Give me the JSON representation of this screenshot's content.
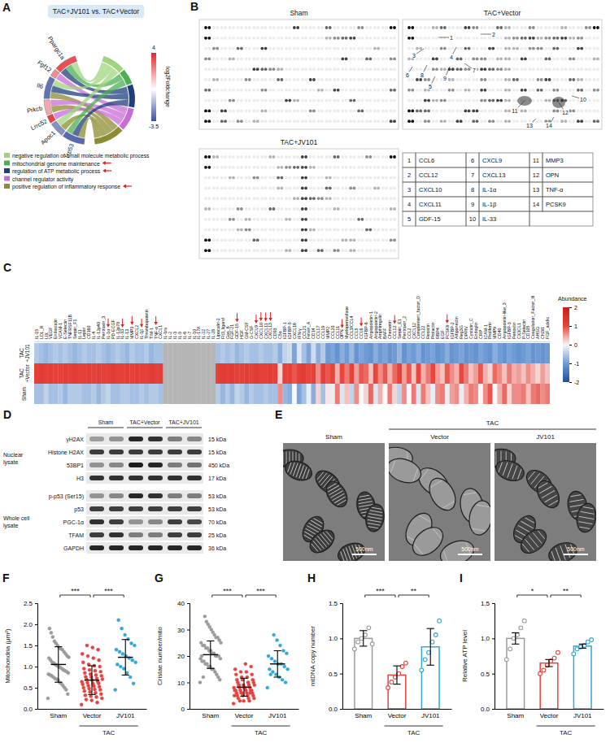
{
  "panel_A": {
    "panel_letter": "A",
    "title": "TAC+JV101 vs. TAC+Vector",
    "genes": [
      {
        "name": "Ppargc1a",
        "log2fc": 3.2,
        "terms": [
          0,
          1,
          2
        ]
      },
      {
        "name": "Fgf12",
        "log2fc": 2.1,
        "terms": [
          3
        ]
      },
      {
        "name": "Il6",
        "log2fc": -2.8,
        "terms": [
          0,
          2,
          4
        ]
      },
      {
        "name": "Prkcb",
        "log2fc": 1.6,
        "terms": [
          3,
          4
        ]
      },
      {
        "name": "Lrrc52",
        "log2fc": 3.5,
        "terms": [
          3
        ]
      },
      {
        "name": "Apoc1",
        "log2fc": -2.2,
        "terms": [
          0,
          4
        ]
      },
      {
        "name": "Trp53",
        "log2fc": -3.0,
        "terms": [
          1,
          2,
          4
        ]
      }
    ],
    "terms": [
      {
        "name": "negative regulation of small molecule metabolic process",
        "color": "#9fd47c"
      },
      {
        "name": "mitochondrial genome maintenance",
        "color": "#4caf50",
        "arrow": true
      },
      {
        "name": "regulation of ATP metabolic process",
        "color": "#1e3f7d",
        "arrow": true
      },
      {
        "name": "channel regulator activity",
        "color": "#c86dd7"
      },
      {
        "name": "positive regulation of inflammatory response",
        "color": "#8c8c32",
        "arrow": true
      }
    ],
    "colorbar": {
      "title": "log2Foldchange",
      "max": 4,
      "min": -3.5
    }
  },
  "panel_B": {
    "panel_letter": "B",
    "blots": [
      "Sham",
      "TAC+Vector",
      "TAC+JV101"
    ],
    "table": [
      {
        "number": 1,
        "name": "CCL6"
      },
      {
        "number": 2,
        "name": "CCL12"
      },
      {
        "number": 3,
        "name": "CXCL10"
      },
      {
        "number": 4,
        "name": "CXCL11"
      },
      {
        "number": 5,
        "name": "GDF-15"
      },
      {
        "number": 6,
        "name": "CXCL9"
      },
      {
        "number": 7,
        "name": "CXCL13"
      },
      {
        "number": 8,
        "name": "IL-1α"
      },
      {
        "number": 9,
        "name": "IL-1β"
      },
      {
        "number": 10,
        "name": "IL-33"
      },
      {
        "number": 11,
        "name": "MMP3"
      },
      {
        "number": 12,
        "name": "OPN"
      },
      {
        "number": 13,
        "name": "TNF-α"
      },
      {
        "number": 14,
        "name": "PCSK9"
      }
    ]
  },
  "chart_data": [
    {
      "type": "heatmap",
      "panel_letter": "C",
      "categories": [
        "IL-15",
        "LDL_R",
        "LIX",
        "VEGF",
        "Endostatin",
        "VCAM-1",
        "E-Selectin",
        "TNFRSF11B",
        "Serpin_F1",
        "IL-11",
        "Leptin",
        "CD160",
        "IL-4",
        "IL-12p40",
        "Pentraxin_3",
        "IL-1α",
        "PD-ECGF",
        "IL-12p70",
        "IL-33",
        "IL-13",
        "MMP3",
        "CXCL2",
        "IL-1β",
        "Thrombopoietin",
        "TIM-1",
        "TNF-α",
        "CXCL1",
        "IL-1ra",
        "IL-2",
        "IL-3",
        "IL-5",
        "IL-6",
        "IL-7",
        "IL-10",
        "IL-17A",
        "IL-22",
        "IL-27",
        "IL-28",
        "Lipocalin-2",
        "Flt3_ligand",
        "Gas_6",
        "FGF-21",
        "GDF-15",
        "HGF",
        "GM-CSF",
        "G-CSF",
        "CXCL9",
        "CXCL10",
        "CXCL11",
        "CXCL13",
        "CD93",
        "C5a",
        "IGFBP-1",
        "IGFBP-5",
        "CXCL16",
        "IFN-γ",
        "CCL21",
        "Fetuin_A",
        "CD14",
        "CCL17",
        "CCL19",
        "MMP2",
        "CCL20",
        "CCL11",
        "OPN",
        "Myeloperoxidase",
        "CCL3/CCL4",
        "CCL5",
        "CCL6",
        "IGFBP-6",
        "Angiopoietin-1",
        "Angiopoietin-2",
        "Amphiregulin",
        "BAFF",
        "Chemerin",
        "CCL12",
        "Serpin_E1",
        "Pentraxin_2",
        "CCL2",
        "CXCL12",
        "Complement_factor_D",
        "CCL22",
        "Resistin",
        "Prolactin",
        "RBP4",
        "EGF",
        "PCSK9",
        "IGFBP-2",
        "Adiponectin",
        "Reg3G",
        "DPPIV",
        "Cystatin_C",
        "Endoglin",
        "CRP",
        "ICAM-1",
        "Proliferin",
        "MMP9",
        "CD40",
        "Angiopoietin-like_3",
        "IGFBP-3",
        "Periostin",
        "CX3CL1",
        "P-Selectin",
        "CD105",
        "Coagulation_Factor_III",
        "AHSG",
        "Chi3l1",
        "FGF_acidic"
      ],
      "rows": [
        "TAC+JV101",
        "TAC+Vector",
        "Sham"
      ],
      "cells": [
        [
          -0.5,
          -0.6,
          -0.7,
          -0.6,
          -0.5,
          -0.6,
          -0.5,
          -0.6,
          -0.7,
          -0.6,
          -0.5,
          -0.6,
          -0.6,
          -0.5,
          -0.6,
          -0.7,
          -0.6,
          -0.5,
          -0.6,
          -0.7,
          -0.5,
          -0.6,
          -0.6,
          -0.5,
          -0.7,
          -0.6,
          -0.6,
          null,
          null,
          null,
          null,
          null,
          null,
          null,
          null,
          null,
          null,
          null,
          -0.6,
          -0.5,
          -0.6,
          -0.5,
          -0.7,
          -0.6,
          -0.5,
          -0.6,
          -0.6,
          -0.5,
          -0.6,
          -0.6,
          -0.5,
          -0.8,
          -0.4,
          -0.3,
          -0.9,
          -0.2,
          -0.6,
          -0.9,
          -0.3,
          -0.8,
          -0.5,
          -1.0,
          -0.9,
          -1.1,
          -0.8,
          -1.0,
          -0.7,
          -1.1,
          -0.9,
          -1.0,
          -1.1,
          -0.8,
          -1.0,
          -0.9,
          -1.1,
          -1.0,
          -0.7,
          -1.1,
          -0.9,
          -1.0,
          -0.8,
          -1.1,
          -1.0,
          -0.9,
          -1.1,
          -1.0,
          -0.8,
          -1.1,
          -1.0,
          -0.9,
          -1.1,
          -1.0,
          -1.1,
          -0.9,
          -1.0,
          -1.1,
          -0.8,
          -1.0,
          -1.1,
          -0.9,
          -1.0,
          -1.1,
          -1.0,
          -0.9,
          -1.1,
          -1.0,
          -1.1,
          -1.0
        ],
        [
          1.1,
          1.2,
          1.1,
          1.2,
          1.1,
          1.1,
          1.2,
          1.1,
          1.2,
          1.1,
          1.1,
          1.2,
          1.1,
          1.2,
          1.1,
          1.1,
          1.2,
          1.1,
          1.1,
          1.2,
          1.1,
          1.2,
          1.1,
          1.1,
          1.2,
          1.1,
          1.2,
          null,
          null,
          null,
          null,
          null,
          null,
          null,
          null,
          null,
          null,
          null,
          1.1,
          1.2,
          1.1,
          1.2,
          1.1,
          1.1,
          1.2,
          1.1,
          1.2,
          1.1,
          1.1,
          1.2,
          1.1,
          0.2,
          1.1,
          1.1,
          0.9,
          1.1,
          1.2,
          1.0,
          1.1,
          0.6,
          1.1,
          0.9,
          1.0,
          0.4,
          1.0,
          0.7,
          1.1,
          0.5,
          0.9,
          0.8,
          0.3,
          1.0,
          0.6,
          0.9,
          0.4,
          0.8,
          1.1,
          0.5,
          0.9,
          0.3,
          1.0,
          0.4,
          0.7,
          1.0,
          0.5,
          0.3,
          0.9,
          0.6,
          0.4,
          1.0,
          0.7,
          0.3,
          0.5,
          0.9,
          0.4,
          0.2,
          0.8,
          0.6,
          0.3,
          0.7,
          0.4,
          0.5,
          0.3,
          0.6,
          0.4,
          0.2,
          0.5,
          0.3
        ],
        [
          -0.6,
          -0.6,
          -0.4,
          -0.6,
          -0.6,
          -0.5,
          -0.7,
          -0.5,
          -0.5,
          -0.5,
          -0.6,
          -0.6,
          -0.5,
          -0.7,
          -0.5,
          -0.4,
          -0.6,
          -0.6,
          -0.5,
          -0.5,
          -0.6,
          -0.6,
          -0.5,
          -0.6,
          -0.5,
          -0.5,
          -0.6,
          null,
          null,
          null,
          null,
          null,
          null,
          null,
          null,
          null,
          null,
          null,
          -0.5,
          -0.7,
          -0.5,
          -0.7,
          -0.4,
          -0.5,
          -0.7,
          -0.5,
          -0.6,
          -0.6,
          -0.5,
          -0.6,
          -0.6,
          0.6,
          -0.7,
          -0.8,
          0.0,
          -0.9,
          -0.6,
          -0.1,
          -0.8,
          0.2,
          -0.6,
          0.1,
          -0.1,
          0.7,
          -0.2,
          0.3,
          -0.4,
          0.6,
          0.0,
          0.2,
          0.8,
          -0.2,
          0.4,
          0.0,
          0.7,
          0.2,
          -0.4,
          0.6,
          0.0,
          0.7,
          -0.2,
          0.7,
          0.3,
          -0.1,
          0.6,
          0.7,
          -0.1,
          0.5,
          0.6,
          -0.1,
          0.4,
          0.7,
          0.6,
          0.0,
          0.6,
          0.9,
          0.0,
          0.4,
          0.8,
          0.2,
          0.6,
          0.6,
          0.7,
          0.3,
          0.7,
          0.8,
          0.6,
          0.7
        ]
      ],
      "colorbar": {
        "title": "Abundance",
        "range": [
          -2,
          2
        ],
        "ticks": [
          2,
          1,
          0,
          -1,
          -2
        ]
      }
    },
    {
      "type": "scatter",
      "panel_letter": "F",
      "y_label": "Mitochondria (μm²)",
      "categories": [
        "Sham",
        "Vector",
        "JV101"
      ],
      "group": {
        "label": "TAC",
        "members": [
          "Vector",
          "JV101"
        ]
      },
      "colors": [
        "#9b9b9b",
        "#e8423f",
        "#33a7d8"
      ],
      "marker": "circle",
      "points": [
        [
          0.25,
          0.35,
          0.45,
          0.5,
          0.55,
          0.6,
          0.62,
          0.68,
          0.7,
          0.72,
          0.75,
          0.78,
          0.8,
          0.82,
          0.85,
          0.88,
          0.9,
          0.92,
          0.95,
          0.98,
          1.0,
          1.02,
          1.05,
          1.08,
          1.1,
          1.15,
          1.2,
          1.22,
          1.25,
          1.3,
          1.35,
          1.4,
          1.42,
          1.45,
          1.5,
          1.55,
          1.6,
          1.7,
          1.8,
          1.9
        ],
        [
          0.1,
          0.15,
          0.2,
          0.22,
          0.25,
          0.28,
          0.3,
          0.32,
          0.35,
          0.38,
          0.4,
          0.42,
          0.45,
          0.46,
          0.48,
          0.5,
          0.52,
          0.54,
          0.55,
          0.58,
          0.6,
          0.6,
          0.62,
          0.64,
          0.65,
          0.68,
          0.7,
          0.7,
          0.72,
          0.75,
          0.76,
          0.78,
          0.8,
          0.82,
          0.85,
          0.88,
          0.9,
          0.92,
          0.95,
          1.0,
          1.02,
          1.05,
          1.1,
          1.15,
          1.2,
          1.25,
          1.3,
          1.4,
          1.45,
          1.5
        ],
        [
          0.45,
          0.6,
          0.75,
          0.85,
          0.95,
          1.0,
          1.05,
          1.1,
          1.15,
          1.2,
          1.25,
          1.3,
          1.35,
          1.4,
          1.5,
          1.55,
          1.65,
          1.75,
          1.9,
          2.1
        ]
      ],
      "mean": [
        1.05,
        0.68,
        1.22
      ],
      "sd": [
        0.42,
        0.34,
        0.42
      ],
      "ylim": [
        0,
        2.5
      ],
      "yticks": [
        {
          "value": 0,
          "label": "0.0"
        },
        0.5,
        {
          "value": 1,
          "label": "1.0"
        },
        1.5,
        {
          "value": 2,
          "label": "2.0"
        },
        2.5
      ],
      "significance": [
        {
          "between": [
            "Sham",
            "Vector"
          ],
          "label": "***"
        },
        {
          "between": [
            "Vector",
            "JV101"
          ],
          "label": "***"
        }
      ]
    },
    {
      "type": "scatter",
      "panel_letter": "G",
      "y_label": "Cristae number/mito",
      "categories": [
        "Sham",
        "Vector",
        "JV101"
      ],
      "group": {
        "label": "TAC",
        "members": [
          "Vector",
          "JV101"
        ]
      },
      "colors": [
        "#9b9b9b",
        "#e8423f",
        "#33a7d8"
      ],
      "marker": "circle",
      "points": [
        [
          10,
          11,
          12,
          13,
          14,
          15,
          15,
          16,
          16,
          17,
          17,
          18,
          18,
          19,
          19,
          20,
          20,
          20,
          21,
          21,
          22,
          22,
          23,
          23,
          24,
          24,
          25,
          25,
          26,
          27,
          27,
          28,
          29,
          30,
          31,
          32,
          33,
          35,
          12,
          20
        ],
        [
          2,
          3,
          3,
          4,
          4,
          4,
          5,
          5,
          5,
          5,
          6,
          6,
          6,
          6,
          6,
          7,
          7,
          7,
          7,
          7,
          7,
          8,
          8,
          8,
          8,
          8,
          9,
          9,
          9,
          9,
          10,
          10,
          10,
          11,
          11,
          11,
          12,
          12,
          13,
          13,
          14,
          14,
          15,
          16,
          17,
          3,
          5,
          6,
          8,
          9
        ],
        [
          8,
          10,
          11,
          12,
          13,
          14,
          15,
          15,
          16,
          17,
          17,
          18,
          19,
          20,
          21,
          22,
          24,
          26,
          28,
          13
        ]
      ],
      "mean": [
        20.5,
        8.2,
        17
      ],
      "sd": [
        5.2,
        3.4,
        5.0
      ],
      "ylim": [
        0,
        40
      ],
      "yticks": [
        0,
        10,
        20,
        30,
        40
      ],
      "significance": [
        {
          "between": [
            "Sham",
            "Vector"
          ],
          "label": "***"
        },
        {
          "between": [
            "Vector",
            "JV101"
          ],
          "label": "***"
        }
      ]
    },
    {
      "type": "bar",
      "panel_letter": "H",
      "y_label": "mtDNA copy number",
      "categories": [
        "Sham",
        "Vector",
        "JV101"
      ],
      "group": {
        "label": "TAC",
        "members": [
          "Vector",
          "JV101"
        ]
      },
      "colors": [
        "#9b9b9b",
        "#e8423f",
        "#33a7d8"
      ],
      "marker": "open-circle",
      "values": [
        1.0,
        0.48,
        0.88
      ],
      "errors": [
        0.11,
        0.13,
        0.26
      ],
      "points": [
        [
          0.85,
          0.95,
          1.0,
          1.05,
          1.15,
          0.92
        ],
        [
          0.3,
          0.38,
          0.45,
          0.5,
          0.6,
          0.65
        ],
        [
          0.55,
          0.7,
          0.8,
          0.95,
          1.05,
          1.25
        ]
      ],
      "ylim": [
        0,
        1.5
      ],
      "yticks": [
        {
          "value": 0,
          "label": "0.0"
        },
        0.5,
        {
          "value": 1,
          "label": "1.0"
        },
        1.5
      ],
      "significance": [
        {
          "between": [
            "Sham",
            "Vector"
          ],
          "label": "***"
        },
        {
          "between": [
            "Vector",
            "JV101"
          ],
          "label": "**"
        }
      ]
    },
    {
      "type": "bar",
      "panel_letter": "I",
      "y_label": "Relative ATP level",
      "categories": [
        "Sham",
        "Vector",
        "JV101"
      ],
      "group": {
        "label": "TAC",
        "members": [
          "Vector",
          "JV101"
        ]
      },
      "colors": [
        "#9b9b9b",
        "#e8423f",
        "#33a7d8"
      ],
      "marker": "open-circle",
      "values": [
        1.0,
        0.65,
        0.89
      ],
      "errors": [
        0.08,
        0.05,
        0.03
      ],
      "points": [
        [
          0.7,
          0.85,
          1.0,
          1.05,
          1.15,
          1.25
        ],
        [
          0.5,
          0.55,
          0.62,
          0.68,
          0.72,
          0.8
        ],
        [
          0.78,
          0.85,
          0.88,
          0.9,
          0.95,
          0.98
        ]
      ],
      "ylim": [
        0,
        1.5
      ],
      "yticks": [
        {
          "value": 0,
          "label": "0.0"
        },
        0.5,
        {
          "value": 1,
          "label": "1.0"
        },
        1.5
      ],
      "significance": [
        {
          "between": [
            "Sham",
            "Vector"
          ],
          "label": "*"
        },
        {
          "between": [
            "Vector",
            "JV101"
          ],
          "label": "**"
        }
      ]
    }
  ],
  "panel_D": {
    "panel_letter": "D",
    "lanes": [
      "Sham",
      "TAC+Vector",
      "TAC+JV101"
    ],
    "groups": [
      {
        "name": "Nuclear lysate",
        "rows": [
          {
            "protein": "γH2AX",
            "size": "15 kDa"
          },
          {
            "protein": "Histone H2AX",
            "size": "15 kDa"
          },
          {
            "protein": "53BP1",
            "size": "450 kDa"
          },
          {
            "protein": "H3",
            "size": "17 kDa"
          }
        ]
      },
      {
        "name": "Whole cell lysate",
        "rows": [
          {
            "protein": "p-p53 (Ser15)",
            "size": "53 kDa"
          },
          {
            "protein": "p53",
            "size": "53 kDa"
          },
          {
            "protein": "PGC-1α",
            "size": "70 kDa"
          },
          {
            "protein": "TFAM",
            "size": "25 kDa"
          },
          {
            "protein": "GAPDH",
            "size": "36 kDa"
          }
        ]
      }
    ]
  },
  "panel_E": {
    "panel_letter": "E",
    "images": [
      "Sham",
      "Vector",
      "JV101"
    ],
    "group": {
      "label": "TAC",
      "members": [
        "Vector",
        "JV101"
      ]
    },
    "scale_bar": "500nm"
  }
}
